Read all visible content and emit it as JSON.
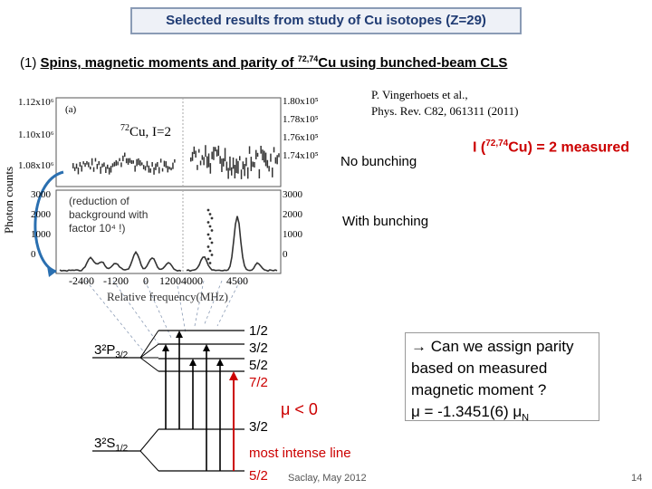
{
  "title": "Selected results from study of Cu isotopes (Z=29)",
  "subtitle": {
    "prefix": "(1)  ",
    "main": "Spins, magnetic moments and parity of ",
    "mass_numbers": "72,74",
    "rest": "Cu using bunched-beam CLS"
  },
  "reference": {
    "line1": "P. Vingerhoets et al.,",
    "line2": "Phys. Rev. C82, 061311 (2011)"
  },
  "plot": {
    "panel_label": "(a)",
    "isotope_mass": "72",
    "isotope_rest": "Cu,  I=2",
    "y_label": "Photon counts",
    "x_label": "Relative frequency(MHz)",
    "x_ticks": [
      "-2400",
      "-1200",
      "0",
      "1200",
      "4000",
      "4500"
    ],
    "upper_left_y_ticks": [
      "1.12x10⁶",
      "1.10x10⁶",
      "1.08x10⁶"
    ],
    "upper_right_y_ticks": [
      "1.80x10⁵",
      "1.78x10⁵",
      "1.76x10⁵",
      "1.74x10⁵"
    ],
    "lower_left_y_ticks": [
      "3000",
      "2000",
      "1000",
      "0"
    ],
    "lower_right_y_ticks": [
      "3000",
      "2000",
      "1000",
      "0"
    ],
    "reduction_note_line1": "(reduction of",
    "reduction_note_line2": "background with",
    "reduction_note_line3": "factor 10⁴ !)"
  },
  "labels": {
    "no_bunching": "No bunching",
    "with_bunching": "With bunching",
    "spin_result_prefix": "I (",
    "spin_result_mass": "72,74",
    "spin_result_rest": "Cu) = 2 measured"
  },
  "levels": {
    "upper_term": "3²P",
    "upper_sub": "3/2",
    "lower_term": "3²S",
    "lower_sub": "1/2",
    "upper_f": [
      "1/2",
      "3/2",
      "5/2",
      "7/2"
    ],
    "lower_f": [
      "3/2",
      "5/2"
    ],
    "mu_sign": "μ < 0",
    "most_intense": "most intense line"
  },
  "parity_box": {
    "line1": "→ Can we assign parity",
    "line2": "based on measured",
    "line3": "magnetic moment ?",
    "line4_mu": "μ",
    "line4_value": " = -1.3451(6) ",
    "line4_unit": "μ",
    "line4_unit_sub": "N"
  },
  "footer": {
    "venue": "Saclay, May 2012",
    "page": "14"
  },
  "colors": {
    "title_text": "#1f3b73",
    "title_border": "#8a9bb5",
    "red": "#cc0000",
    "arrow_blue": "#2a6fb0",
    "data_marker": "#333333"
  }
}
